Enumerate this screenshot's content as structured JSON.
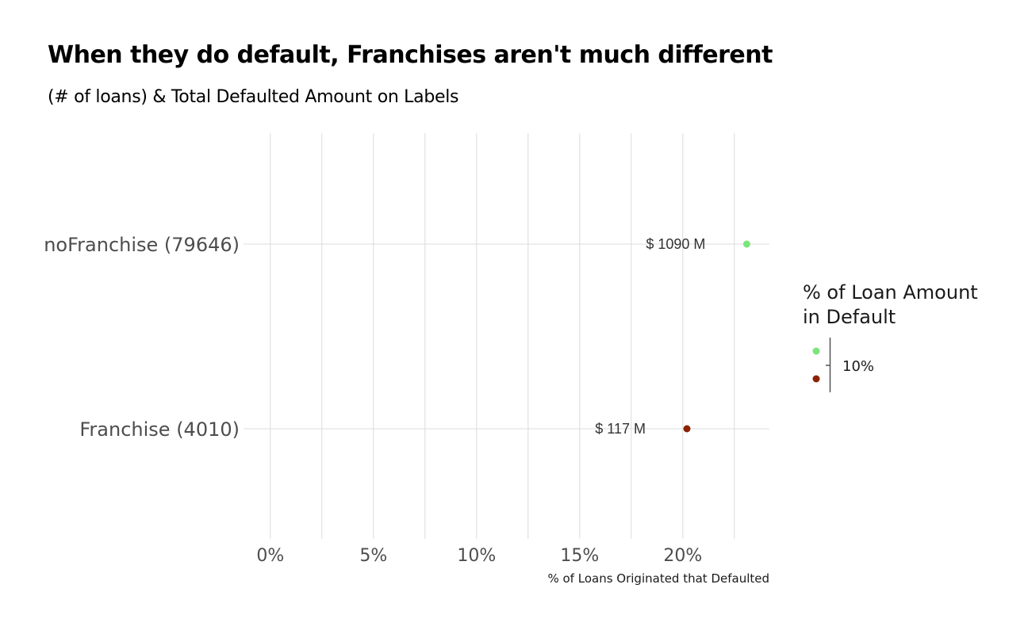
{
  "title": "When they do default, Franchises aren't much different",
  "subtitle": "(# of loans) & Total Defaulted Amount on Labels",
  "chart_data": {
    "type": "scatter",
    "title": "When they do default, Franchises aren't much different",
    "subtitle": "(# of loans) & Total Defaulted Amount on Labels",
    "xlabel": "% of Loans Originated that Defaulted",
    "ylabel": "",
    "xlim": [
      -1.3,
      24.2
    ],
    "x_ticks": [
      0,
      5,
      10,
      15,
      20
    ],
    "x_tick_labels": [
      "0%",
      "5%",
      "10%",
      "15%",
      "20%"
    ],
    "x_minor_ticks": [
      2.5,
      7.5,
      12.5,
      17.5,
      22.5
    ],
    "categories": [
      "noFranchise (79646)",
      "Franchise (4010)"
    ],
    "points": [
      {
        "category": "noFranchise (79646)",
        "x": 23.1,
        "label": "$ 1090 M",
        "color": "#7be57b"
      },
      {
        "category": "Franchise (4010)",
        "x": 20.2,
        "label": "$ 117 M",
        "color": "#8b2204"
      }
    ],
    "grid": true,
    "legend": {
      "title_lines": [
        "% of Loan Amount",
        "in Default"
      ],
      "colors": [
        "#7be57b",
        "#8b2204"
      ],
      "labels": [
        "10%"
      ],
      "placement": "right"
    }
  }
}
